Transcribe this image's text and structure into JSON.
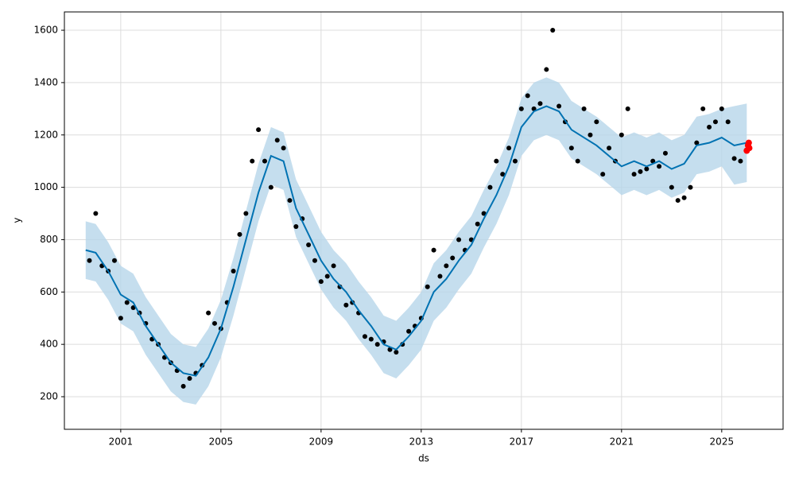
{
  "chart_data": {
    "type": "line",
    "xlabel": "ds",
    "ylabel": "y",
    "xlim": [
      1998.75,
      2027.45
    ],
    "ylim": [
      75.5,
      1670
    ],
    "xticks": [
      2001,
      2005,
      2009,
      2013,
      2017,
      2021,
      2025
    ],
    "yticks": [
      200,
      400,
      600,
      800,
      1000,
      1200,
      1400,
      1600
    ],
    "grid": true,
    "forecast": {
      "color": "#0072b2",
      "band_color": "#b7d6ea",
      "x": [
        1999.6,
        2000,
        2000.5,
        2001,
        2001.5,
        2002,
        2002.5,
        2003,
        2003.5,
        2004,
        2004.5,
        2005,
        2005.5,
        2006,
        2006.5,
        2007,
        2007.5,
        2008,
        2008.5,
        2009,
        2009.5,
        2010,
        2010.5,
        2011,
        2011.5,
        2012,
        2012.5,
        2013,
        2013.5,
        2014,
        2014.5,
        2015,
        2015.5,
        2016,
        2016.5,
        2017,
        2017.5,
        2018,
        2018.5,
        2019,
        2019.5,
        2020,
        2020.5,
        2021,
        2021.5,
        2022,
        2022.5,
        2023,
        2023.5,
        2024,
        2024.5,
        2025,
        2025.5,
        2026
      ],
      "yhat": [
        760,
        750,
        680,
        590,
        560,
        470,
        400,
        330,
        290,
        280,
        350,
        460,
        620,
        800,
        980,
        1120,
        1100,
        920,
        820,
        720,
        650,
        600,
        530,
        470,
        400,
        380,
        430,
        490,
        600,
        650,
        720,
        780,
        880,
        970,
        1080,
        1230,
        1290,
        1310,
        1290,
        1220,
        1190,
        1160,
        1120,
        1080,
        1100,
        1080,
        1100,
        1070,
        1090,
        1160,
        1170,
        1190,
        1160,
        1170
      ],
      "yhat_lower": [
        650,
        640,
        570,
        480,
        450,
        360,
        290,
        220,
        180,
        170,
        240,
        350,
        510,
        690,
        870,
        1010,
        990,
        810,
        710,
        610,
        540,
        490,
        420,
        360,
        290,
        270,
        320,
        380,
        490,
        540,
        610,
        670,
        770,
        860,
        970,
        1120,
        1180,
        1200,
        1180,
        1110,
        1080,
        1050,
        1010,
        970,
        990,
        970,
        990,
        960,
        980,
        1050,
        1060,
        1080,
        1010,
        1020
      ],
      "yhat_upper": [
        870,
        860,
        790,
        700,
        670,
        580,
        510,
        440,
        400,
        390,
        460,
        570,
        730,
        910,
        1090,
        1230,
        1210,
        1030,
        930,
        830,
        760,
        710,
        640,
        580,
        510,
        490,
        540,
        600,
        710,
        760,
        830,
        890,
        990,
        1080,
        1190,
        1340,
        1400,
        1420,
        1400,
        1330,
        1300,
        1270,
        1230,
        1190,
        1210,
        1190,
        1210,
        1180,
        1200,
        1270,
        1280,
        1300,
        1310,
        1320
      ]
    },
    "observed": {
      "color": "#000000",
      "x": [
        1999.75,
        2000,
        2000.25,
        2000.5,
        2000.75,
        2001,
        2001.25,
        2001.5,
        2001.75,
        2002,
        2002.25,
        2002.5,
        2002.75,
        2003,
        2003.25,
        2003.5,
        2003.75,
        2004,
        2004.25,
        2004.5,
        2004.75,
        2005,
        2005.25,
        2005.5,
        2005.75,
        2006,
        2006.25,
        2006.5,
        2006.75,
        2007,
        2007.25,
        2007.5,
        2007.75,
        2008,
        2008.25,
        2008.5,
        2008.75,
        2009,
        2009.25,
        2009.5,
        2009.75,
        2010,
        2010.25,
        2010.5,
        2010.75,
        2011,
        2011.25,
        2011.5,
        2011.75,
        2012,
        2012.25,
        2012.5,
        2012.75,
        2013,
        2013.25,
        2013.5,
        2013.75,
        2014,
        2014.25,
        2014.5,
        2014.75,
        2015,
        2015.25,
        2015.5,
        2015.75,
        2016,
        2016.25,
        2016.5,
        2016.75,
        2017,
        2017.25,
        2017.5,
        2017.75,
        2018,
        2018.25,
        2018.5,
        2018.75,
        2019,
        2019.25,
        2019.5,
        2019.75,
        2020,
        2020.25,
        2020.5,
        2020.75,
        2021,
        2021.25,
        2021.5,
        2021.75,
        2022,
        2022.25,
        2022.5,
        2022.75,
        2023,
        2023.25,
        2023.5,
        2023.75,
        2024,
        2024.25,
        2024.5,
        2024.75,
        2025,
        2025.25,
        2025.5,
        2025.75
      ],
      "values": [
        720,
        900,
        700,
        680,
        720,
        500,
        560,
        540,
        520,
        480,
        420,
        400,
        350,
        330,
        300,
        240,
        270,
        290,
        320,
        520,
        480,
        460,
        560,
        680,
        820,
        900,
        1100,
        1220,
        1100,
        1000,
        1180,
        1150,
        950,
        850,
        880,
        780,
        720,
        640,
        660,
        700,
        620,
        550,
        560,
        520,
        430,
        420,
        400,
        410,
        380,
        370,
        400,
        450,
        470,
        500,
        620,
        760,
        660,
        700,
        730,
        800,
        760,
        800,
        860,
        900,
        1000,
        1100,
        1050,
        1150,
        1100,
        1300,
        1350,
        1300,
        1320,
        1450,
        1600,
        1310,
        1250,
        1150,
        1100,
        1300,
        1200,
        1250,
        1050,
        1150,
        1100,
        1200,
        1300,
        1050,
        1060,
        1070,
        1100,
        1080,
        1130,
        1000,
        950,
        960,
        1000,
        1170,
        1300,
        1230,
        1250,
        1300,
        1250,
        1110,
        1100
      ]
    },
    "future": {
      "color": "#ff0000",
      "x": [
        2026.0,
        2026.05,
        2026.08,
        2026.1
      ],
      "values": [
        1140,
        1160,
        1170,
        1150
      ]
    }
  }
}
